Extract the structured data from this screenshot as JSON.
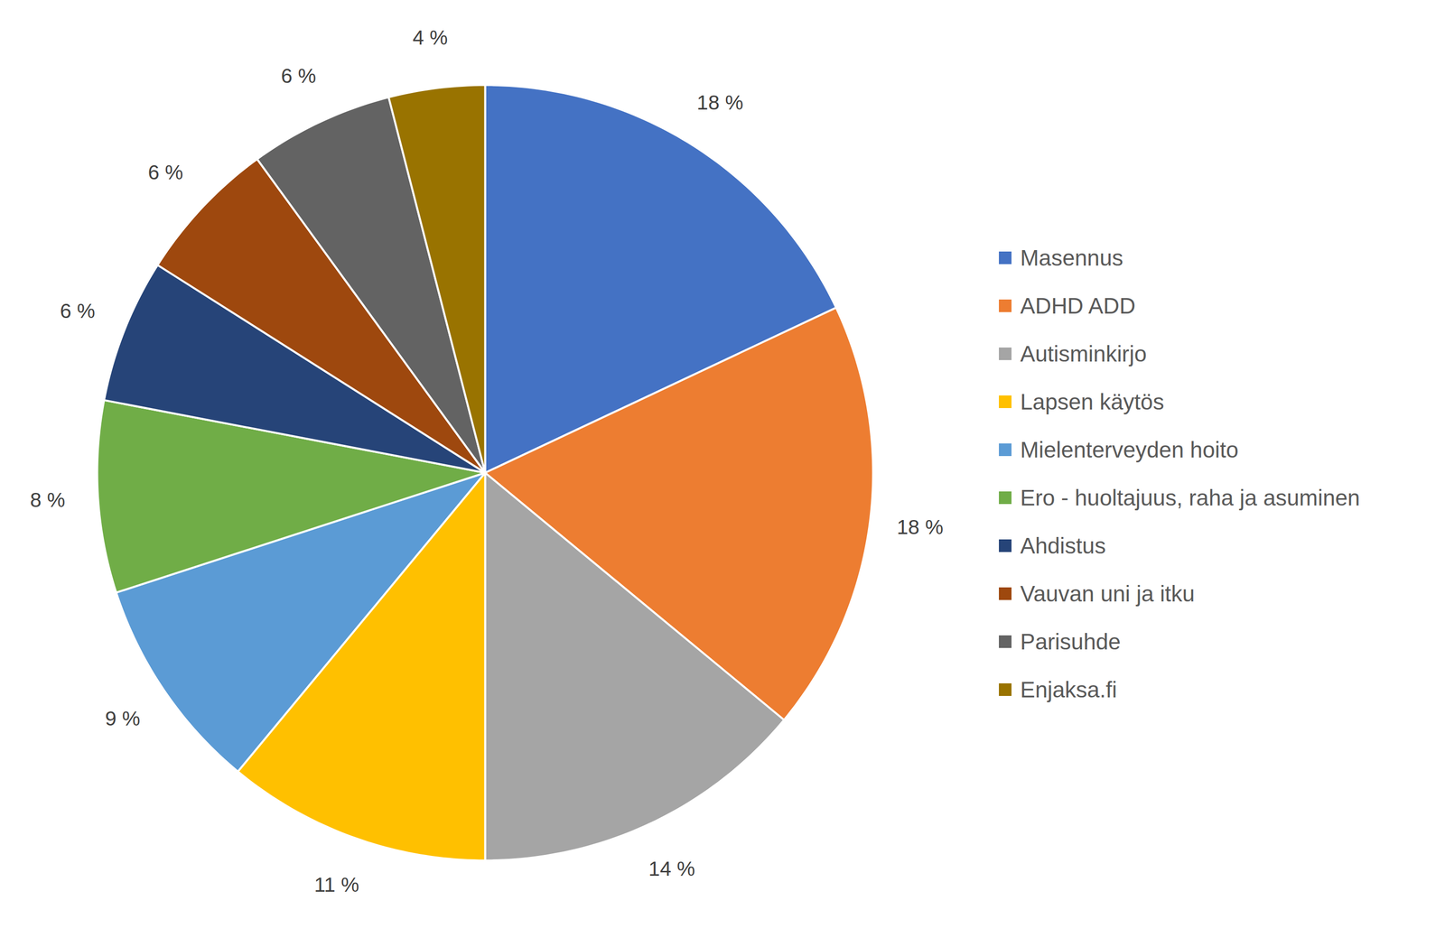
{
  "chart_data": {
    "type": "pie",
    "categories": [
      "Masennus",
      "ADHD ADD",
      "Autisminkirjo",
      "Lapsen käytös",
      "Mielenterveyden hoito",
      "Ero - huoltajuus, raha ja asuminen",
      "Ahdistus",
      "Vauvan uni ja itku",
      "Parisuhde",
      "Enjaksa.fi"
    ],
    "values": [
      18,
      18,
      14,
      11,
      9,
      8,
      6,
      6,
      6,
      4
    ],
    "value_labels": [
      "18 %",
      "18 %",
      "14 %",
      "11 %",
      "9 %",
      "8 %",
      "6 %",
      "6 %",
      "6 %",
      "4 %"
    ],
    "colors": [
      "#4472c4",
      "#ed7d31",
      "#a5a5a5",
      "#ffc000",
      "#5b9bd5",
      "#70ad47",
      "#264478",
      "#9e480e",
      "#636363",
      "#997300"
    ],
    "data_labels": true,
    "legend": "right"
  }
}
